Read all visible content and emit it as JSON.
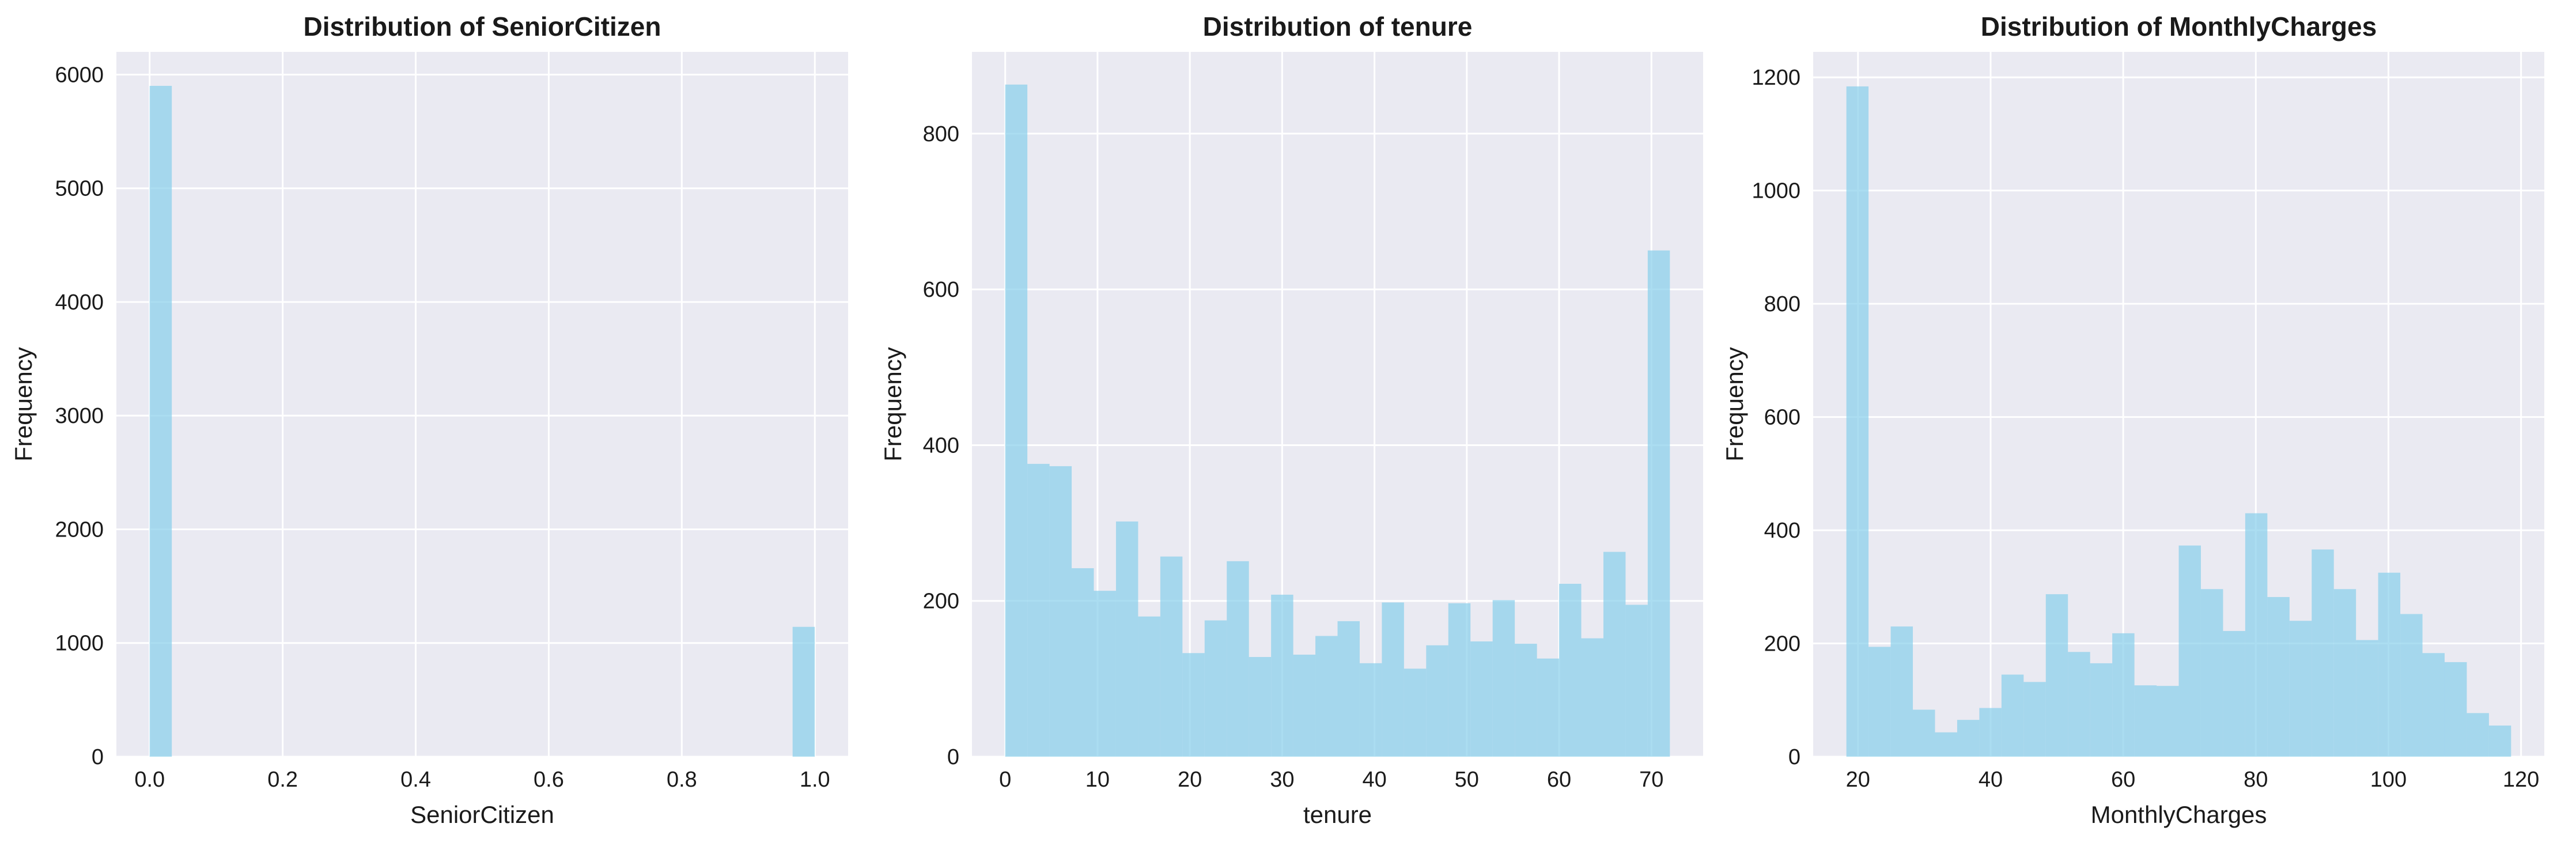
{
  "chart_data": [
    {
      "type": "bar",
      "title": "Distribution of SeniorCitizen",
      "xlabel": "SeniorCitizen",
      "ylabel": "Frequency",
      "xlim": [
        -0.05,
        1.05
      ],
      "ylim": [
        0,
        6200
      ],
      "xticks": [
        0.0,
        0.2,
        0.4,
        0.6,
        0.8,
        1.0
      ],
      "xtick_labels": [
        "0.0",
        "0.2",
        "0.4",
        "0.6",
        "0.8",
        "1.0"
      ],
      "yticks": [
        0,
        1000,
        2000,
        3000,
        4000,
        5000,
        6000
      ],
      "ytick_labels": [
        "0",
        "1000",
        "2000",
        "3000",
        "4000",
        "5000",
        "6000"
      ],
      "bin_start": 0.0,
      "bin_width": 0.03333,
      "values": [
        5901,
        0,
        0,
        0,
        0,
        0,
        0,
        0,
        0,
        0,
        0,
        0,
        0,
        0,
        0,
        0,
        0,
        0,
        0,
        0,
        0,
        0,
        0,
        0,
        0,
        0,
        0,
        0,
        0,
        1142
      ],
      "grid": true,
      "color": "#87ceeb"
    },
    {
      "type": "bar",
      "title": "Distribution of tenure",
      "xlabel": "tenure",
      "ylabel": "Frequency",
      "xlim": [
        -3.6,
        75.6
      ],
      "ylim": [
        0,
        905
      ],
      "xticks": [
        0,
        10,
        20,
        30,
        40,
        50,
        60,
        70
      ],
      "xtick_labels": [
        "0",
        "10",
        "20",
        "30",
        "40",
        "50",
        "60",
        "70"
      ],
      "yticks": [
        0,
        200,
        400,
        600,
        800
      ],
      "ytick_labels": [
        "0",
        "200",
        "400",
        "600",
        "800"
      ],
      "bin_start": 0,
      "bin_width": 2.4,
      "values": [
        863,
        376,
        373,
        242,
        213,
        302,
        180,
        257,
        133,
        175,
        251,
        128,
        208,
        131,
        155,
        174,
        120,
        198,
        113,
        143,
        197,
        148,
        201,
        145,
        126,
        222,
        152,
        263,
        195,
        650
      ],
      "grid": true,
      "color": "#87ceeb"
    },
    {
      "type": "bar",
      "title": "Distribution of MonthlyCharges",
      "xlabel": "MonthlyCharges",
      "ylabel": "Frequency",
      "xlim": [
        13.24,
        123.51
      ],
      "ylim": [
        0,
        1245
      ],
      "xticks": [
        20,
        40,
        60,
        80,
        100,
        120
      ],
      "xtick_labels": [
        "20",
        "40",
        "60",
        "80",
        "100",
        "120"
      ],
      "yticks": [
        0,
        200,
        400,
        600,
        800,
        1000,
        1200
      ],
      "ytick_labels": [
        "0",
        "200",
        "400",
        "600",
        "800",
        "1000",
        "1200"
      ],
      "bin_start": 18.25,
      "bin_width": 3.3417,
      "values": [
        1184,
        194,
        230,
        83,
        43,
        65,
        86,
        145,
        132,
        287,
        185,
        165,
        218,
        126,
        125,
        373,
        296,
        222,
        430,
        282,
        240,
        366,
        296,
        206,
        325,
        252,
        183,
        167,
        77,
        55
      ],
      "grid": true,
      "color": "#87ceeb"
    }
  ]
}
